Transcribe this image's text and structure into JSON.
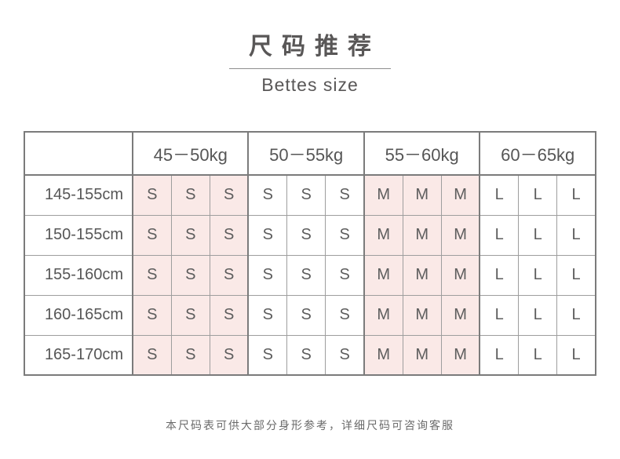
{
  "title": {
    "zh": "尺码推荐",
    "en": "Bettes size"
  },
  "table": {
    "corner_label": "",
    "weight_headers": [
      "45－50kg",
      "50－55kg",
      "55－60kg",
      "60－65kg"
    ],
    "sub_columns_per_group": 3,
    "rows": [
      {
        "height": "145-155cm",
        "sizes": [
          "S",
          "S",
          "S",
          "S",
          "S",
          "S",
          "M",
          "M",
          "M",
          "L",
          "L",
          "L"
        ]
      },
      {
        "height": "150-155cm",
        "sizes": [
          "S",
          "S",
          "S",
          "S",
          "S",
          "S",
          "M",
          "M",
          "M",
          "L",
          "L",
          "L"
        ]
      },
      {
        "height": "155-160cm",
        "sizes": [
          "S",
          "S",
          "S",
          "S",
          "S",
          "S",
          "M",
          "M",
          "M",
          "L",
          "L",
          "L"
        ]
      },
      {
        "height": "160-165cm",
        "sizes": [
          "S",
          "S",
          "S",
          "S",
          "S",
          "S",
          "M",
          "M",
          "M",
          "L",
          "L",
          "L"
        ]
      },
      {
        "height": "165-170cm",
        "sizes": [
          "S",
          "S",
          "S",
          "S",
          "S",
          "S",
          "M",
          "M",
          "M",
          "L",
          "L",
          "L"
        ]
      }
    ],
    "highlighted_groups": [
      0,
      2
    ],
    "colors": {
      "highlight_pink": "#fae9e7",
      "border_dark": "#7b7b7b",
      "border_light": "#9e9e9e",
      "text": "#595757"
    }
  },
  "footer_note": "本尺码表可供大部分身形参考，详细尺码可咨询客服"
}
